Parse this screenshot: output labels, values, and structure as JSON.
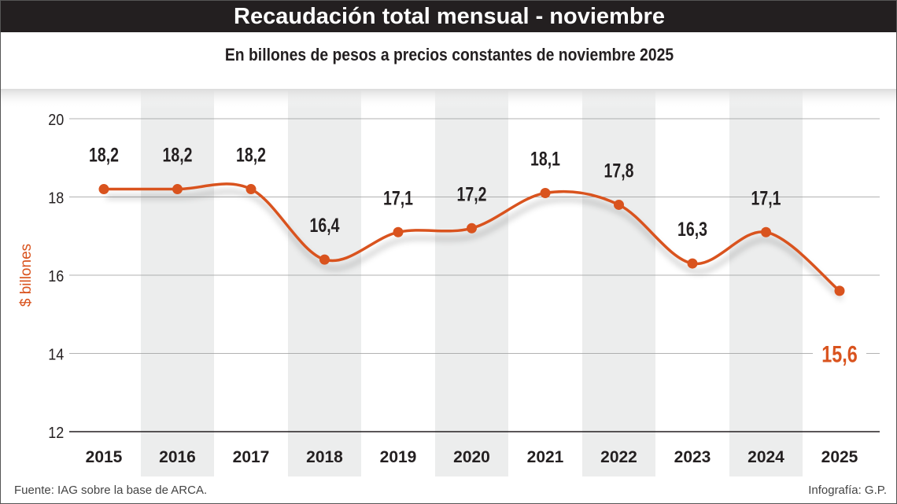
{
  "title": "Recaudación total mensual - noviembre",
  "subtitle": "En billones de pesos a precios constantes de noviembre 2025",
  "source": "Fuente: IAG sobre la base de ARCA.",
  "credit": "Infografía: G.P.",
  "colors": {
    "line": "#d9531e",
    "band": "#eceded",
    "title_bg": "#231f20"
  },
  "chart_data": {
    "type": "line",
    "title": "Recaudación total mensual - noviembre",
    "subtitle": "En billones de pesos a precios constantes de noviembre 2025",
    "ylabel": "$ billones",
    "xlabel": "",
    "ylim": [
      12,
      20
    ],
    "yticks": [
      "12",
      "14",
      "16",
      "18",
      "20"
    ],
    "grid": true,
    "categories": [
      "2015",
      "2016",
      "2017",
      "2018",
      "2019",
      "2020",
      "2021",
      "2022",
      "2023",
      "2024",
      "2025"
    ],
    "values": [
      18.2,
      18.2,
      18.2,
      16.4,
      17.1,
      17.2,
      18.1,
      17.8,
      16.3,
      17.1,
      15.6
    ],
    "labels": [
      "18,2",
      "18,2",
      "18,2",
      "16,4",
      "17,1",
      "17,2",
      "18,1",
      "17,8",
      "16,3",
      "17,1",
      "15,6"
    ]
  }
}
